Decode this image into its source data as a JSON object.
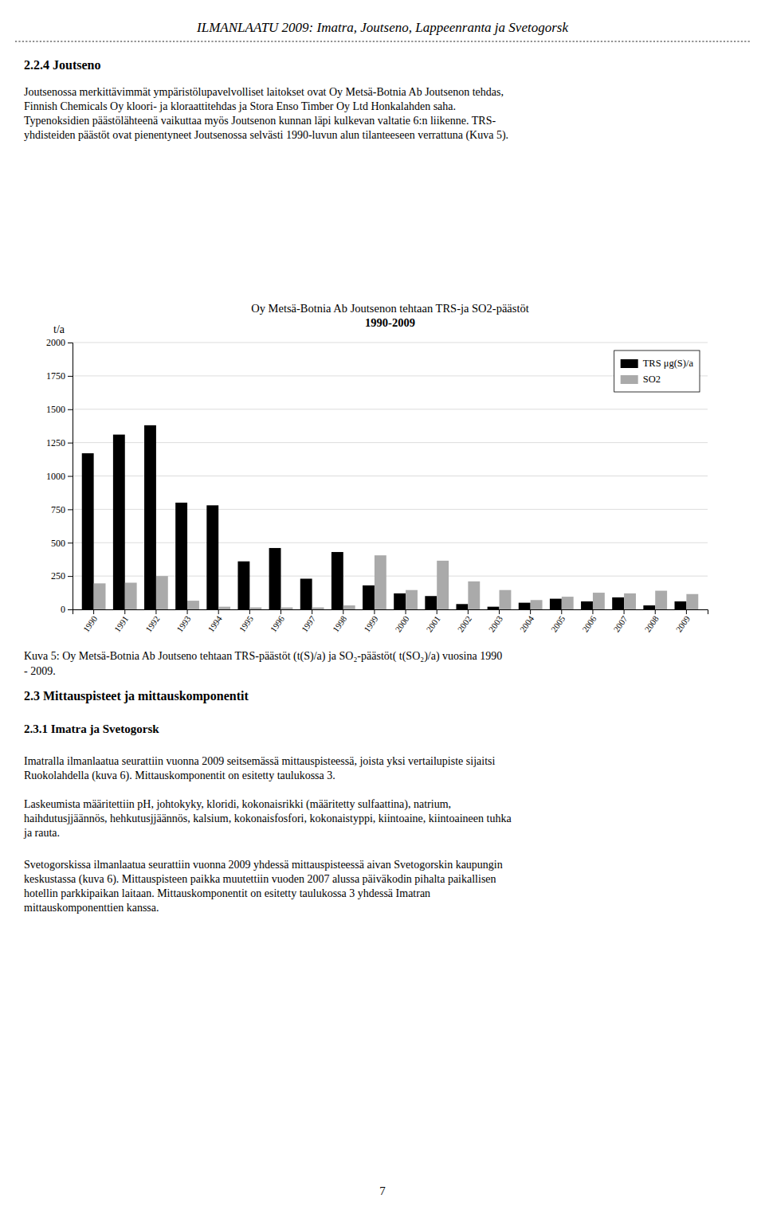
{
  "page_title": "ILMANLAATU 2009: Imatra, Joutseno, Lappeenranta ja Svetogorsk",
  "section_header": "2.2.4 Joutseno",
  "para1_lines": [
    "Joutsenossa merkittävimmät ympäristölupavelvolliset laitokset ovat Oy Metsä-Botnia Ab Joutsenon tehdas,",
    "Finnish Chemicals Oy kloori- ja kloraattitehdas ja Stora Enso Timber Oy Ltd Honkalahden saha.",
    "Typenoksidien päästölähteenä vaikuttaa myös Joutsenon kunnan läpi kulkevan valtatie 6:n liikenne. TRS-",
    "yhdisteiden päästöt ovat pienentyneet Joutsenossa selvästi 1990-luvun alun tilanteeseen verrattuna (Kuva 5)."
  ],
  "chart_data": {
    "type": "bar",
    "title": "Oy Metsä-Botnia Ab Joutsenon tehtaan TRS-ja SO2-päästöt",
    "subtitle": "1990-2009",
    "y_label": "t/a",
    "categories": [
      "1990",
      "1991",
      "1992",
      "1993",
      "1994",
      "1995",
      "1996",
      "1997",
      "1998",
      "1999",
      "2000",
      "2001",
      "2002",
      "2003",
      "2004",
      "2005",
      "2006",
      "2007",
      "2008",
      "2009"
    ],
    "series": [
      {
        "name": "TRS μg(S)/a",
        "color": "#000000",
        "values": [
          1170,
          1310,
          1380,
          800,
          780,
          360,
          460,
          230,
          430,
          180,
          120,
          100,
          40,
          20,
          50,
          80,
          60,
          90,
          30,
          60
        ]
      },
      {
        "name": "SO2",
        "color": "#aaaaaa",
        "values": [
          195,
          200,
          250,
          65,
          20,
          15,
          15,
          15,
          30,
          405,
          145,
          365,
          210,
          145,
          70,
          95,
          125,
          120,
          140,
          115
        ]
      }
    ],
    "ylim": [
      0,
      2000
    ],
    "yticks": [
      0,
      250,
      500,
      750,
      1000,
      1250,
      1500,
      1750,
      2000
    ],
    "grid": true,
    "legend": "upper right"
  },
  "caption_lines": [
    "Kuva 5: Oy Metsä-Botnia Ab Joutseno tehtaan TRS-päästöt (t(S)/a) ja SO₂-päästöt( t(SO₂)/a) vuosina 1990",
    "- 2009."
  ],
  "section23": "2.3 Mittauspisteet ja mittauskomponentit",
  "section231": "2.3.1 Imatra ja Svetogorsk",
  "imatra_lines": [
    "Imatralla ilmanlaatua seurattiin vuonna 2009 seitsemässä mittauspisteessä, joista yksi vertailupiste sijaitsi",
    "Ruokolahdella (kuva 6).  Mittauskomponentit on esitetty taulukossa 3."
  ],
  "lask_lines": [
    "Laskeumista määritettiin pH, johtokyky, kloridi, kokonaisrikki (määritetty sulfaattina), natrium,",
    "haihdutusjjäännös, hehkutusjjäännös, kalsium, kokonaisfosfori, kokonaistyppi, kiintoaine, kiintoaineen tuhka",
    "ja rauta."
  ],
  "sveto_lines": [
    "Svetogorskissa ilmanlaatua seurattiin vuonna 2009 yhdessä mittauspisteessä aivan Svetogorskin kaupungin",
    "keskustassa (kuva 6). Mittauspisteen paikka muutettiin vuoden 2007 alussa päiväkodin pihalta paikallisen",
    "hotellin parkkipaikan laitaan.  Mittauskomponentit on esitetty taulukossa 3 yhdessä Imatran",
    "mittauskomponenttien kanssa."
  ],
  "page_number": "7"
}
